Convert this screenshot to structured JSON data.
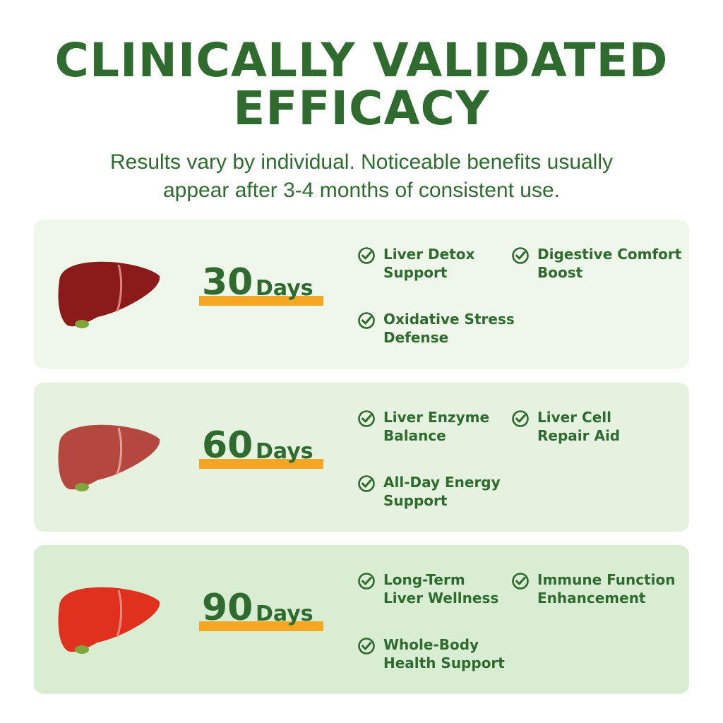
{
  "header": {
    "title_line1": "CLINICALLY VALIDATED",
    "title_line2": "EFFICACY",
    "subtitle_line1": "Results vary by individual. Noticeable benefits usually",
    "subtitle_line2": "appear after 3-4 months of consistent use."
  },
  "stages": [
    {
      "number": "30",
      "unit": "Days",
      "liver_color": "#8b1a1a",
      "card_color": "#eef7ea",
      "benefits": [
        "Liver Detox\nSupport",
        "Digestive Comfort\nBoost",
        "Oxidative Stress\nDefense"
      ]
    },
    {
      "number": "60",
      "unit": "Days",
      "liver_color": "#b5483e",
      "card_color": "#e5f2df",
      "benefits": [
        "Liver Enzyme\nBalance",
        "Liver Cell\nRepair Aid",
        "All-Day Energy\nSupport"
      ]
    },
    {
      "number": "90",
      "unit": "Days",
      "liver_color": "#e0301e",
      "card_color": "#d9edd3",
      "benefits": [
        "Long-Term\nLiver Wellness",
        "Immune Function\nEnhancement",
        "Whole-Body\nHealth Support"
      ]
    }
  ],
  "colors": {
    "brand_green": "#2f6b2f",
    "accent_orange": "#f5a623"
  },
  "icons": {
    "benefit": "check-circle-icon",
    "stage": "liver-icon"
  }
}
